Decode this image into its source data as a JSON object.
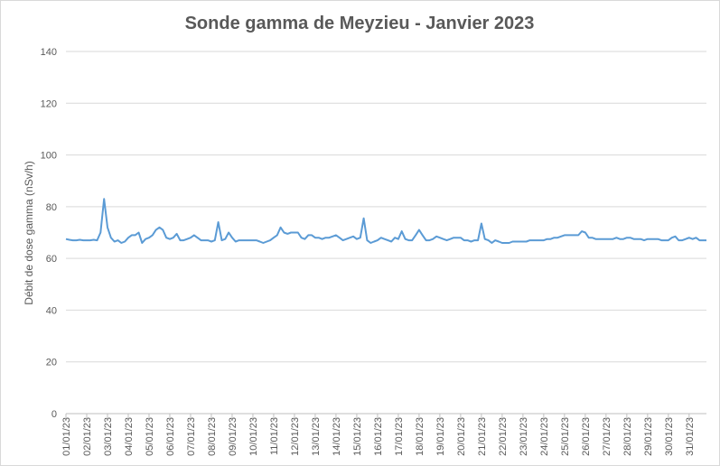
{
  "chart_data": {
    "type": "line",
    "title": "Sonde gamma de Meyzieu - Janvier 2023",
    "y_label": "Débit de dose gamma (nSv/h)",
    "categories": [
      "01/01/23",
      null,
      null,
      null,
      null,
      null,
      "02/01/23",
      null,
      null,
      null,
      null,
      null,
      "03/01/23",
      null,
      null,
      null,
      null,
      null,
      "04/01/23",
      null,
      null,
      null,
      null,
      null,
      "05/01/23",
      null,
      null,
      null,
      null,
      null,
      "06/01/23",
      null,
      null,
      null,
      null,
      null,
      "07/01/23",
      null,
      null,
      null,
      null,
      null,
      "08/01/23",
      null,
      null,
      null,
      null,
      null,
      "09/01/23",
      null,
      null,
      null,
      null,
      null,
      "10/01/23",
      null,
      null,
      null,
      null,
      null,
      "11/01/23",
      null,
      null,
      null,
      null,
      null,
      "12/01/23",
      null,
      null,
      null,
      null,
      null,
      "13/01/23",
      null,
      null,
      null,
      null,
      null,
      "14/01/23",
      null,
      null,
      null,
      null,
      null,
      "15/01/23",
      null,
      null,
      null,
      null,
      null,
      "16/01/23",
      null,
      null,
      null,
      null,
      null,
      "17/01/23",
      null,
      null,
      null,
      null,
      null,
      "18/01/23",
      null,
      null,
      null,
      null,
      null,
      "19/01/23",
      null,
      null,
      null,
      null,
      null,
      "20/01/23",
      null,
      null,
      null,
      null,
      null,
      "21/01/23",
      null,
      null,
      null,
      null,
      null,
      "22/01/23",
      null,
      null,
      null,
      null,
      null,
      "23/01/23",
      null,
      null,
      null,
      null,
      null,
      "24/01/23",
      null,
      null,
      null,
      null,
      null,
      "25/01/23",
      null,
      null,
      null,
      null,
      null,
      "26/01/23",
      null,
      null,
      null,
      null,
      null,
      "27/01/23",
      null,
      null,
      null,
      null,
      null,
      "28/01/23",
      null,
      null,
      null,
      null,
      null,
      "29/01/23",
      null,
      null,
      null,
      null,
      null,
      "30/01/23",
      null,
      null,
      null,
      null,
      null,
      "31/01/23",
      null,
      null,
      null,
      null,
      null
    ],
    "series": [
      {
        "name": "Débit de dose",
        "color": "#5b9bd5",
        "values": [
          67.5,
          67.2,
          67,
          67,
          67.2,
          67,
          67,
          67,
          67.2,
          67,
          70,
          83,
          72,
          68,
          66.5,
          67,
          66,
          66.5,
          68,
          69,
          69,
          70,
          66,
          67.5,
          68,
          69,
          71,
          72,
          71,
          68,
          67.5,
          68,
          69.5,
          67,
          67,
          67.5,
          68,
          69,
          68,
          67,
          67,
          67,
          66.5,
          67,
          74,
          67,
          67.5,
          70,
          68,
          66.5,
          67,
          67,
          67,
          67,
          67,
          67,
          66.5,
          66,
          66.5,
          67,
          68,
          69,
          72,
          70,
          69.5,
          70,
          70,
          70,
          68,
          67.5,
          69,
          69,
          68,
          68,
          67.5,
          68,
          68,
          68.5,
          69,
          68,
          67,
          67.5,
          68,
          68.5,
          67.5,
          68,
          75.5,
          67,
          66,
          66.5,
          67,
          68,
          67.5,
          67,
          66.5,
          68,
          67.5,
          70.5,
          67.5,
          67,
          67,
          69,
          71,
          69,
          67,
          67,
          67.5,
          68.5,
          68,
          67.5,
          67,
          67.5,
          68,
          68,
          68,
          67,
          67,
          66.5,
          67,
          67,
          73.5,
          67.5,
          67,
          66,
          67,
          66.5,
          66,
          66,
          66,
          66.5,
          66.5,
          66.5,
          66.5,
          66.5,
          67,
          67,
          67,
          67,
          67,
          67.5,
          67.5,
          68,
          68,
          68.5,
          69,
          69,
          69,
          69,
          69,
          70.5,
          70,
          68,
          68,
          67.5,
          67.5,
          67.5,
          67.5,
          67.5,
          67.5,
          68,
          67.5,
          67.5,
          68,
          68,
          67.5,
          67.5,
          67.5,
          67,
          67.5,
          67.5,
          67.5,
          67.5,
          67,
          67,
          67,
          68,
          68.5,
          67,
          67,
          67.5,
          68,
          67.5,
          68,
          67,
          67,
          67
        ]
      }
    ],
    "ylim": [
      0,
      140
    ],
    "yticks": [
      0,
      20,
      40,
      60,
      80,
      100,
      120,
      140
    ],
    "grid": true
  }
}
